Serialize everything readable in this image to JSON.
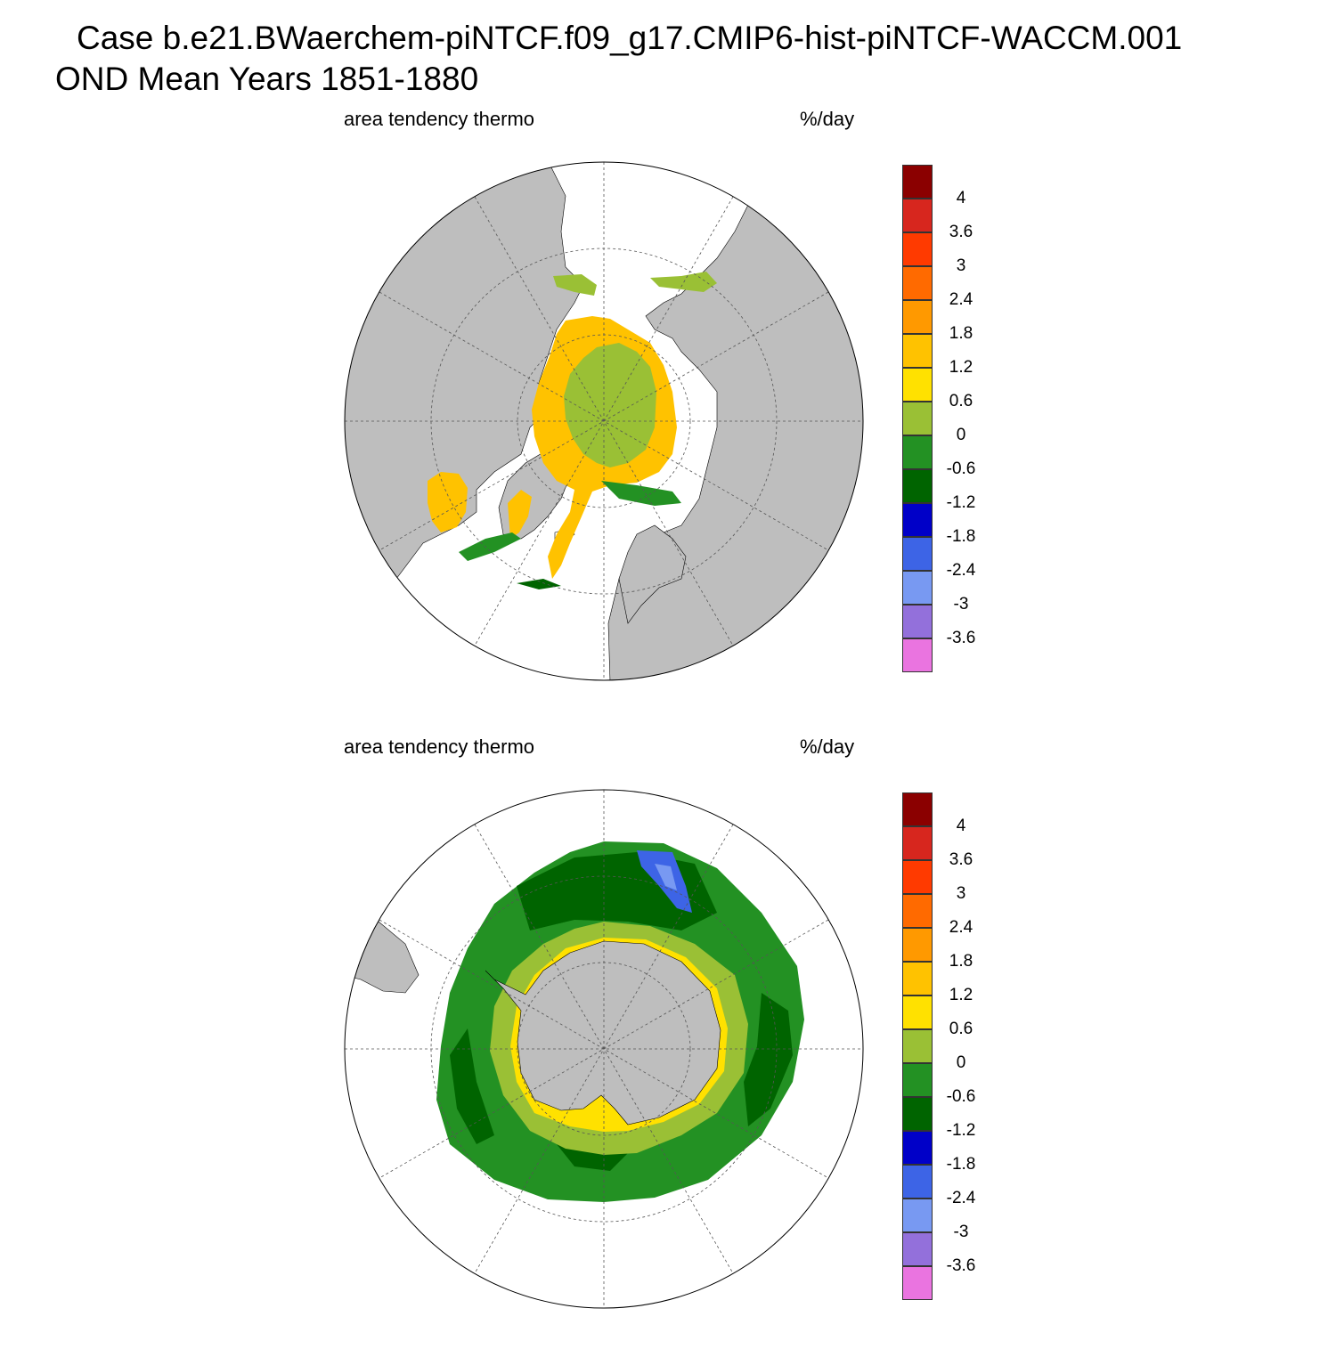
{
  "title": {
    "line1": "Case b.e21.BWaerchem-piNTCF.f09_g17.CMIP6-hist-piNTCF-WACCM.001",
    "line2": "OND Mean   Years 1851-1880"
  },
  "colorbar": {
    "labels": [
      "4",
      "3.6",
      "3",
      "2.4",
      "1.8",
      "1.2",
      "0.6",
      "0",
      "-0.6",
      "-1.2",
      "-1.8",
      "-2.4",
      "-3",
      "-3.6"
    ],
    "colors": [
      "#8b0000",
      "#d7261e",
      "#ff3a00",
      "#ff6a00",
      "#ff9900",
      "#ffc200",
      "#ffe100",
      "#9ac035",
      "#239123",
      "#006400",
      "#0000c8",
      "#3d64e6",
      "#7899f2",
      "#9370db",
      "#ea74e0"
    ]
  },
  "colors": {
    "land": "#bebebe",
    "ocean_no_ice": "#ffffff",
    "grid": "#555555"
  },
  "panels": [
    {
      "id": "nh",
      "left_label": "area tendency thermo",
      "right_label": "%/day",
      "hemisphere": "north"
    },
    {
      "id": "sh",
      "left_label": "area tendency thermo",
      "right_label": "%/day",
      "hemisphere": "south"
    }
  ]
}
